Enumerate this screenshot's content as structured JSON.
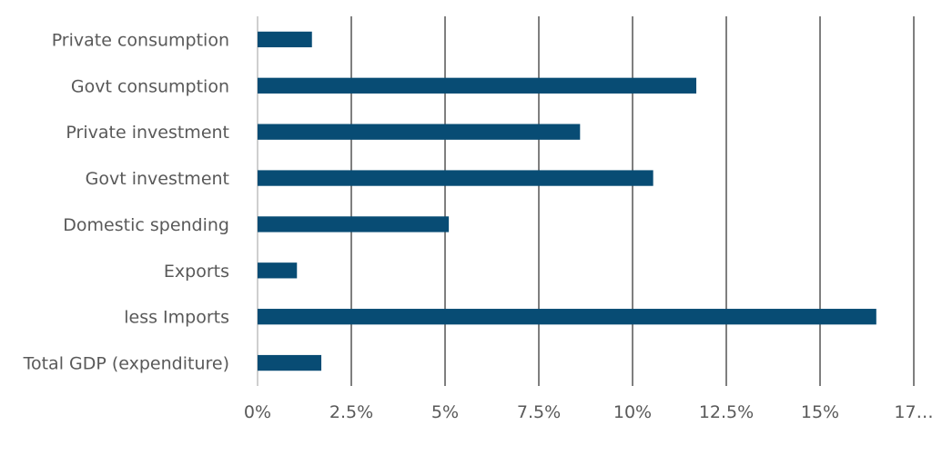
{
  "chart_data": {
    "type": "bar",
    "orientation": "horizontal",
    "title": "",
    "xlabel": "",
    "ylabel": "",
    "categories": [
      "Private consumption",
      "Govt consumption",
      "Private investment",
      "Govt investment",
      "Domestic spending",
      "Exports",
      "less Imports",
      "Total GDP (expenditure)"
    ],
    "values": [
      1.45,
      11.7,
      8.6,
      10.55,
      5.1,
      1.05,
      16.5,
      1.7
    ],
    "unit": "%",
    "xlim": [
      0,
      17.5
    ],
    "ticks": [
      0,
      2.5,
      5,
      7.5,
      10,
      12.5,
      15,
      17.5
    ],
    "tick_labels": [
      "0%",
      "2.5%",
      "5%",
      "7.5%",
      "10%",
      "12.5%",
      "15%",
      "17…"
    ],
    "grid": true,
    "legend": "none",
    "bar_color": "#084c74"
  }
}
